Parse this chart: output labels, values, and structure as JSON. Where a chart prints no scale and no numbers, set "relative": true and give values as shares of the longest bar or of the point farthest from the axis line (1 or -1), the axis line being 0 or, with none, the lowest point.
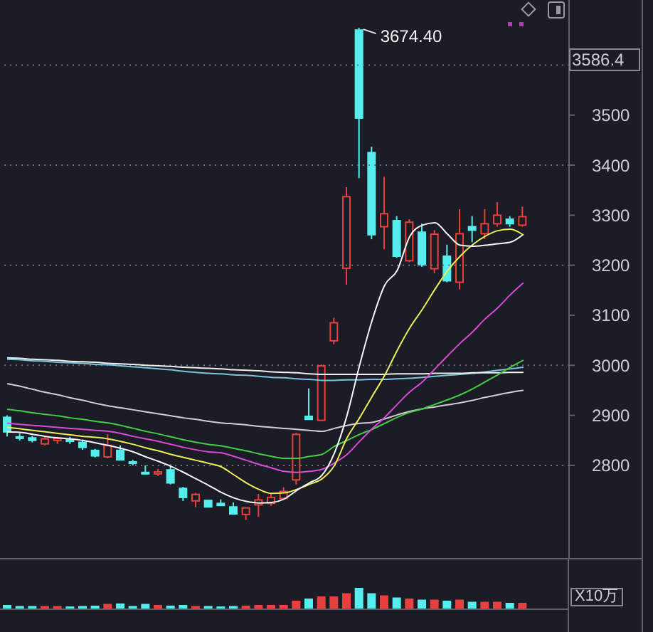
{
  "chart_data": [
    {
      "type": "candlestick",
      "categories": [
        null,
        null,
        null,
        null,
        null,
        null,
        null,
        null,
        null,
        null,
        null,
        null,
        null,
        null,
        null,
        null,
        null,
        null,
        null,
        null,
        null,
        null,
        null,
        null,
        null,
        null,
        null,
        null,
        null,
        null,
        null,
        null,
        null,
        null,
        null,
        null,
        null,
        null,
        null,
        null,
        null,
        null
      ],
      "ohlc": [
        [
          2896,
          2900,
          2858,
          2867
        ],
        [
          2857,
          2864,
          2850,
          2855
        ],
        [
          2855,
          2859,
          2846,
          2850
        ],
        [
          2843,
          2857,
          2840,
          2853
        ],
        [
          2850,
          2857,
          2843,
          2854
        ],
        [
          2851,
          2857,
          2843,
          2849
        ],
        [
          2846,
          2850,
          2831,
          2836
        ],
        [
          2830,
          2833,
          2816,
          2819
        ],
        [
          2817,
          2862,
          2814,
          2840
        ],
        [
          2830,
          2840,
          2810,
          2811
        ],
        [
          2807,
          2811,
          2800,
          2804
        ],
        [
          2786,
          2800,
          2783,
          2783
        ],
        [
          2783,
          2793,
          2779,
          2787
        ],
        [
          2791,
          2802,
          2762,
          2765
        ],
        [
          2754,
          2757,
          2729,
          2736
        ],
        [
          2729,
          2745,
          2717,
          2742
        ],
        [
          2730,
          2730,
          2715,
          2717
        ],
        [
          2724,
          2732,
          2719,
          2720
        ],
        [
          2717,
          2726,
          2701,
          2703
        ],
        [
          2702,
          2717,
          2691,
          2715
        ],
        [
          2721,
          2743,
          2697,
          2731
        ],
        [
          2724,
          2743,
          2719,
          2736
        ],
        [
          2734,
          2756,
          2733,
          2748
        ],
        [
          2771,
          2865,
          2762,
          2862
        ],
        [
          2898,
          2954,
          2890,
          2892
        ],
        [
          2890,
          3002,
          2888,
          2999
        ],
        [
          3049,
          3095,
          3042,
          3085
        ],
        [
          3194,
          3356,
          3161,
          3337
        ],
        [
          3670,
          3674.4,
          3374,
          3494
        ],
        [
          3425,
          3437,
          3252,
          3261
        ],
        [
          3277,
          3377,
          3232,
          3303
        ],
        [
          3289,
          3298,
          3215,
          3218
        ],
        [
          3209,
          3292,
          3206,
          3286
        ],
        [
          3266,
          3283,
          3197,
          3201
        ],
        [
          3193,
          3270,
          3184,
          3262
        ],
        [
          3218,
          3241,
          3166,
          3169
        ],
        [
          3166,
          3312,
          3152,
          3263
        ],
        [
          3277,
          3298,
          3246,
          3270
        ],
        [
          3263,
          3312,
          3252,
          3283
        ],
        [
          3283,
          3326,
          3277,
          3300
        ],
        [
          3292,
          3298,
          3277,
          3283
        ],
        [
          3280,
          3317,
          3277,
          3297
        ]
      ],
      "colors": [
        "#55eeee",
        "#55eeee",
        "#55eeee",
        "#e8413d",
        "#e8413d",
        "#55eeee",
        "#55eeee",
        "#55eeee",
        "#e8413d",
        "#55eeee",
        "#55eeee",
        "#55eeee",
        "#e8413d",
        "#55eeee",
        "#55eeee",
        "#e8413d",
        "#55eeee",
        "#55eeee",
        "#55eeee",
        "#e8413d",
        "#e8413d",
        "#e8413d",
        "#e8413d",
        "#e8413d",
        "#55eeee",
        "#e8413d",
        "#e8413d",
        "#e8413d",
        "#55eeee",
        "#55eeee",
        "#e8413d",
        "#55eeee",
        "#e8413d",
        "#55eeee",
        "#e8413d",
        "#55eeee",
        "#e8413d",
        "#55eeee",
        "#e8413d",
        "#e8413d",
        "#55eeee",
        "#e8413d"
      ],
      "series": [
        {
          "type": "line",
          "color": "#7cc4dc",
          "values": [
            3012,
            3011,
            3009,
            3008,
            3006,
            3005,
            3004,
            3002,
            3001,
            2999,
            2997,
            2995,
            2993,
            2991,
            2988,
            2986,
            2984,
            2983,
            2981,
            2980,
            2978,
            2976,
            2975,
            2973,
            2972,
            2970,
            2970,
            2971,
            2971,
            2972,
            2972,
            2973,
            2974,
            2976,
            2978,
            2980,
            2982,
            2984,
            2987,
            2990,
            2993,
            2996
          ]
        },
        {
          "type": "line",
          "color": "#eeeeee",
          "values": [
            3015,
            3014,
            3012,
            3011,
            3010,
            3008,
            3007,
            3006,
            3004,
            3003,
            3002,
            3000,
            2999,
            2998,
            2996,
            2995,
            2994,
            2993,
            2991,
            2990,
            2989,
            2987,
            2986,
            2985,
            2983,
            2982,
            2982,
            2982,
            2982,
            2982,
            2982,
            2983,
            2983,
            2983,
            2984,
            2984,
            2984,
            2985,
            2985,
            2985,
            2986,
            2986
          ]
        },
        {
          "type": "line",
          "color": "#d6c9dc",
          "values": [
            2963,
            2958,
            2952,
            2946,
            2941,
            2935,
            2930,
            2924,
            2919,
            2915,
            2911,
            2907,
            2903,
            2899,
            2895,
            2892,
            2888,
            2885,
            2883,
            2881,
            2878,
            2876,
            2874,
            2872,
            2870,
            2868,
            2874,
            2880,
            2884,
            2886,
            2893,
            2901,
            2908,
            2913,
            2917,
            2921,
            2925,
            2930,
            2936,
            2941,
            2946,
            2950
          ]
        },
        {
          "type": "line",
          "color": "#44cc44",
          "values": [
            2912,
            2909,
            2905,
            2902,
            2899,
            2895,
            2892,
            2888,
            2885,
            2880,
            2874,
            2868,
            2863,
            2857,
            2851,
            2846,
            2842,
            2839,
            2834,
            2829,
            2823,
            2818,
            2814,
            2814,
            2818,
            2822,
            2838,
            2850,
            2862,
            2872,
            2884,
            2896,
            2906,
            2913,
            2922,
            2931,
            2941,
            2953,
            2967,
            2981,
            2996,
            3010
          ]
        },
        {
          "type": "line",
          "color": "#d84ad8",
          "values": [
            2884,
            2882,
            2880,
            2878,
            2876,
            2874,
            2872,
            2870,
            2868,
            2864,
            2858,
            2853,
            2848,
            2842,
            2836,
            2831,
            2827,
            2825,
            2818,
            2810,
            2802,
            2795,
            2788,
            2786,
            2788,
            2792,
            2805,
            2822,
            2848,
            2873,
            2896,
            2922,
            2947,
            2967,
            2993,
            3019,
            3044,
            3067,
            3093,
            3115,
            3141,
            3164
          ]
        },
        {
          "type": "line",
          "color": "#eded5a",
          "values": [
            2876,
            2873,
            2870,
            2867,
            2864,
            2861,
            2858,
            2856,
            2853,
            2848,
            2842,
            2835,
            2829,
            2822,
            2816,
            2810,
            2804,
            2797,
            2781,
            2765,
            2752,
            2744,
            2745,
            2752,
            2762,
            2773,
            2800,
            2855,
            2895,
            2938,
            2980,
            3030,
            3075,
            3112,
            3152,
            3189,
            3218,
            3241,
            3258,
            3269,
            3272,
            3261
          ]
        },
        {
          "type": "line",
          "color": "#f6f6f6",
          "values": [
            2867,
            2866,
            2862,
            2858,
            2855,
            2853,
            2850,
            2845,
            2840,
            2834,
            2827,
            2817,
            2808,
            2798,
            2786,
            2773,
            2760,
            2746,
            2735,
            2728,
            2725,
            2726,
            2733,
            2750,
            2765,
            2780,
            2825,
            2900,
            3000,
            3090,
            3160,
            3190,
            3258,
            3280,
            3285,
            3262,
            3240,
            3238,
            3240,
            3243,
            3246,
            3261
          ]
        }
      ],
      "ylim": [
        2615,
        3730
      ],
      "yticks": [
        2800,
        2900,
        3000,
        3100,
        3200,
        3300,
        3400,
        3500
      ],
      "tick_labels": "y",
      "ref_lines": [
        {
          "axis": "y",
          "value": 3600,
          "line_style": "dotted",
          "color": "#70737f"
        },
        {
          "axis": "y",
          "value": 3400,
          "line_style": "dotted",
          "color": "#70737f"
        },
        {
          "axis": "y",
          "value": 3200,
          "line_style": "dotted",
          "color": "#70737f"
        },
        {
          "axis": "y",
          "value": 3000,
          "line_style": "dotted",
          "color": "#70737f"
        },
        {
          "axis": "y",
          "value": 2800,
          "line_style": "dotted",
          "color": "#70737f"
        }
      ],
      "annotations": [
        "3674.40",
        "3586.4"
      ]
    },
    {
      "type": "bar",
      "categories": [
        null,
        null,
        null,
        null,
        null,
        null,
        null,
        null,
        null,
        null,
        null,
        null,
        null,
        null,
        null,
        null,
        null,
        null,
        null,
        null,
        null,
        null,
        null,
        null,
        null,
        null,
        null,
        null,
        null,
        null,
        null,
        null,
        null,
        null,
        null,
        null,
        null,
        null,
        null,
        null,
        null,
        null
      ],
      "values": [
        0.2,
        0.15,
        0.15,
        0.15,
        0.15,
        0.13,
        0.15,
        0.17,
        0.25,
        0.27,
        0.15,
        0.25,
        0.2,
        0.17,
        0.2,
        0.15,
        0.15,
        0.13,
        0.15,
        0.17,
        0.2,
        0.2,
        0.2,
        0.4,
        0.5,
        0.6,
        0.6,
        0.75,
        1,
        0.75,
        0.65,
        0.55,
        0.5,
        0.45,
        0.45,
        0.4,
        0.45,
        0.35,
        0.35,
        0.35,
        0.3,
        0.3
      ],
      "colors": [
        "#55eeee",
        "#55eeee",
        "#55eeee",
        "#e8413d",
        "#e8413d",
        "#55eeee",
        "#55eeee",
        "#55eeee",
        "#e8413d",
        "#55eeee",
        "#55eeee",
        "#55eeee",
        "#e8413d",
        "#55eeee",
        "#55eeee",
        "#e8413d",
        "#55eeee",
        "#55eeee",
        "#55eeee",
        "#e8413d",
        "#e8413d",
        "#e8413d",
        "#e8413d",
        "#e8413d",
        "#55eeee",
        "#e8413d",
        "#e8413d",
        "#e8413d",
        "#55eeee",
        "#55eeee",
        "#e8413d",
        "#55eeee",
        "#e8413d",
        "#55eeee",
        "#e8413d",
        "#55eeee",
        "#e8413d",
        "#55eeee",
        "#e8413d",
        "#e8413d",
        "#55eeee",
        "#e8413d"
      ],
      "relative": true,
      "ylabel": "X10万",
      "tick_labels": false
    }
  ]
}
